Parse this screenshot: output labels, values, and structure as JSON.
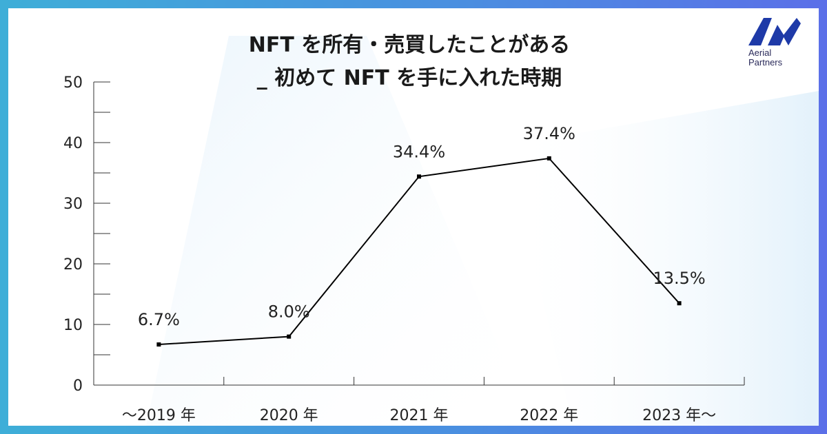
{
  "title": {
    "line1": "NFT を所有・売買したことがある",
    "line2": "_ 初めて NFT を手に入れた時期"
  },
  "logo": {
    "line1": "Aerial",
    "line2": "Partners",
    "brand_color": "#1e3aa8"
  },
  "chart_data": {
    "type": "line",
    "title": "NFT を所有・売買したことがある _ 初めて NFT を手に入れた時期",
    "categories": [
      "～2019 年",
      "2020 年",
      "2021 年",
      "2022 年",
      "2023 年～"
    ],
    "values": [
      6.7,
      8.0,
      34.4,
      37.4,
      13.5
    ],
    "data_labels": [
      "6.7%",
      "8.0%",
      "34.4%",
      "37.4%",
      "13.5%"
    ],
    "ylim": [
      0,
      50
    ],
    "yticks": [
      "0",
      "10",
      "20",
      "30",
      "40",
      "50"
    ],
    "xlabel": "",
    "ylabel": "",
    "grid": false,
    "line_color": "#000000"
  }
}
